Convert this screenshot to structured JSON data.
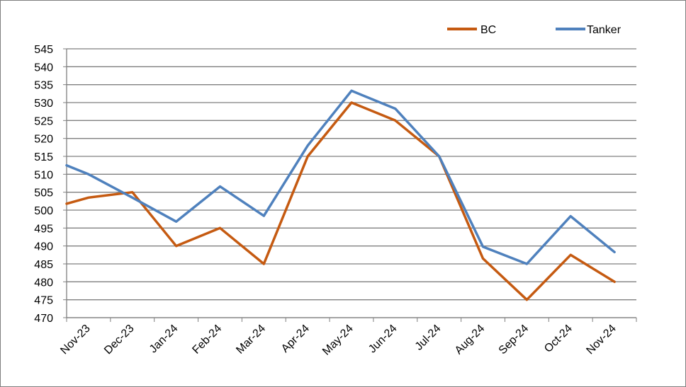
{
  "chart_data": {
    "type": "line",
    "categories": [
      "Nov-23",
      "Dec-23",
      "Jan-24",
      "Feb-24",
      "Mar-24",
      "Apr-24",
      "May-24",
      "Jun-24",
      "Jul-24",
      "Aug-24",
      "Sep-24",
      "Oct-24",
      "Nov-24"
    ],
    "x_midpoints": [
      null,
      null,
      null,
      null,
      null,
      null,
      null,
      null,
      null,
      null,
      null,
      null,
      null
    ],
    "series": [
      {
        "name": "BC",
        "color": "#c55a11",
        "points": [
          {
            "x": 0,
            "y": 501.8
          },
          {
            "x": 0.5,
            "y": 503.5
          },
          {
            "x": 1.5,
            "y": 505.0
          },
          {
            "x": 2.5,
            "y": 490.0
          },
          {
            "x": 3.5,
            "y": 495.0
          },
          {
            "x": 4.5,
            "y": 485.0
          },
          {
            "x": 5.5,
            "y": 515.0
          },
          {
            "x": 6.5,
            "y": 530.0
          },
          {
            "x": 7.5,
            "y": 525.0
          },
          {
            "x": 8.5,
            "y": 515.0
          },
          {
            "x": 9.5,
            "y": 486.5
          },
          {
            "x": 10.5,
            "y": 475.0
          },
          {
            "x": 11.5,
            "y": 487.5
          },
          {
            "x": 12.5,
            "y": 480.0
          }
        ]
      },
      {
        "name": "Tanker",
        "color": "#4f81bd",
        "points": [
          {
            "x": 0,
            "y": 512.5
          },
          {
            "x": 0.5,
            "y": 510.0
          },
          {
            "x": 1.5,
            "y": 503.5
          },
          {
            "x": 2.5,
            "y": 496.8
          },
          {
            "x": 3.5,
            "y": 506.6
          },
          {
            "x": 4.5,
            "y": 498.4
          },
          {
            "x": 5.5,
            "y": 518.0
          },
          {
            "x": 6.5,
            "y": 533.3
          },
          {
            "x": 7.5,
            "y": 528.3
          },
          {
            "x": 8.5,
            "y": 515.0
          },
          {
            "x": 9.5,
            "y": 489.8
          },
          {
            "x": 10.5,
            "y": 485.0
          },
          {
            "x": 11.5,
            "y": 498.3
          },
          {
            "x": 12.5,
            "y": 488.3
          }
        ]
      }
    ],
    "y_ticks": [
      470,
      475,
      480,
      485,
      490,
      495,
      500,
      505,
      510,
      515,
      520,
      525,
      530,
      535,
      540,
      545
    ],
    "ylim": [
      470,
      545
    ],
    "grid": true,
    "legend": "top-right",
    "gridline_color": "#7f7f7f"
  }
}
